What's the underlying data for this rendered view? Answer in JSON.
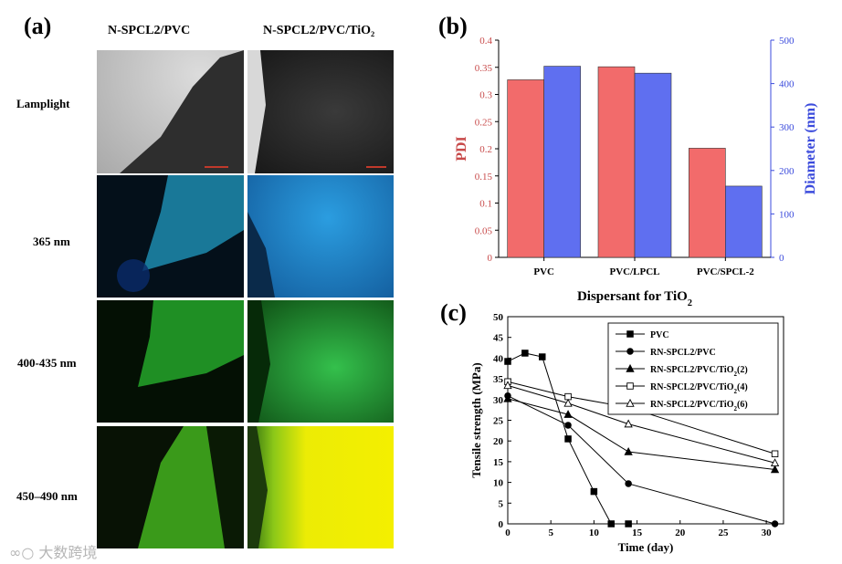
{
  "panel_a": {
    "label": "(a)",
    "columns": [
      "N-SPCL2/PVC",
      "N-SPCL2/PVC/TiO₂"
    ],
    "rows": [
      "Lamplight",
      "365 nm",
      "400-435 nm",
      "450–490 nm"
    ],
    "colors": {
      "lamp_bg": "#b9b9b9",
      "lamp_dark": "#2b2b2b",
      "uv_dark": "#05121c",
      "uv_sample": "#1e7fa0",
      "uv_bright": "#1d7fc8",
      "green_dark": "#041004",
      "green_sample": "#1f8a22",
      "green_bright": "#27b045",
      "yellow_dark": "#0a1605",
      "yellow_sample": "#3f9a18",
      "yellow_bright": "#f3f000"
    }
  },
  "chart_data": [
    {
      "panel_label": "(b)",
      "type": "bar",
      "categories": [
        "PVC",
        "PVC/LPCL",
        "PVC/SPCL-2"
      ],
      "series": [
        {
          "name": "PDI",
          "axis": "left",
          "color": "#f26b6b",
          "values": [
            0.327,
            0.351,
            0.201
          ]
        },
        {
          "name": "Diameter (nm)",
          "axis": "right",
          "color": "#5f6ff0",
          "values": [
            440,
            424,
            164
          ]
        }
      ],
      "xlabel": "Dispersant for TiO₂",
      "ylabel": "PDI",
      "ylabel_right": "Diameter (nm)",
      "ylim": [
        0,
        0.4
      ],
      "ylim_right": [
        0,
        500
      ],
      "yticks": [
        "0",
        "0.05",
        "0.1",
        "0.15",
        "0.2",
        "0.25",
        "0.3",
        "0.35",
        "0.4"
      ],
      "yticks_right": [
        "0",
        "100",
        "200",
        "300",
        "400",
        "500"
      ]
    },
    {
      "panel_label": "(c)",
      "type": "line",
      "xlabel": "Time (day)",
      "ylabel": "Tensile strength (MPa)",
      "xlim": [
        0,
        32
      ],
      "ylim": [
        0,
        50
      ],
      "xticks": [
        "0",
        "5",
        "10",
        "15",
        "20",
        "25",
        "30"
      ],
      "yticks": [
        "0",
        "5",
        "10",
        "15",
        "20",
        "25",
        "30",
        "35",
        "40",
        "45",
        "50"
      ],
      "legend_position": "top-right",
      "series": [
        {
          "name": "PVC",
          "marker": "filled-square",
          "x": [
            0,
            2,
            4,
            7,
            10,
            12,
            14
          ],
          "y": [
            39.2,
            41.2,
            40.3,
            20.5,
            7.8,
            0,
            0
          ]
        },
        {
          "name": "RN-SPCL2/PVC",
          "marker": "filled-circle",
          "x": [
            0,
            7,
            14,
            31
          ],
          "y": [
            30.9,
            23.8,
            9.7,
            0
          ]
        },
        {
          "name": "RN-SPCL2/PVC/TiO₂(2)",
          "marker": "filled-triangle",
          "x": [
            0,
            7,
            14,
            31
          ],
          "y": [
            30.2,
            26.4,
            17.4,
            13.1
          ]
        },
        {
          "name": "RN-SPCL2/PVC/TiO₂(4)",
          "marker": "open-square",
          "x": [
            0,
            7,
            14,
            31
          ],
          "y": [
            34.3,
            30.7,
            28.1,
            16.9
          ]
        },
        {
          "name": "RN-SPCL2/PVC/TiO₂(6)",
          "marker": "open-triangle",
          "x": [
            0,
            7,
            14,
            31
          ],
          "y": [
            33.4,
            29.1,
            24.1,
            14.7
          ]
        }
      ]
    }
  ],
  "watermark": {
    "text": "大数跨境"
  }
}
